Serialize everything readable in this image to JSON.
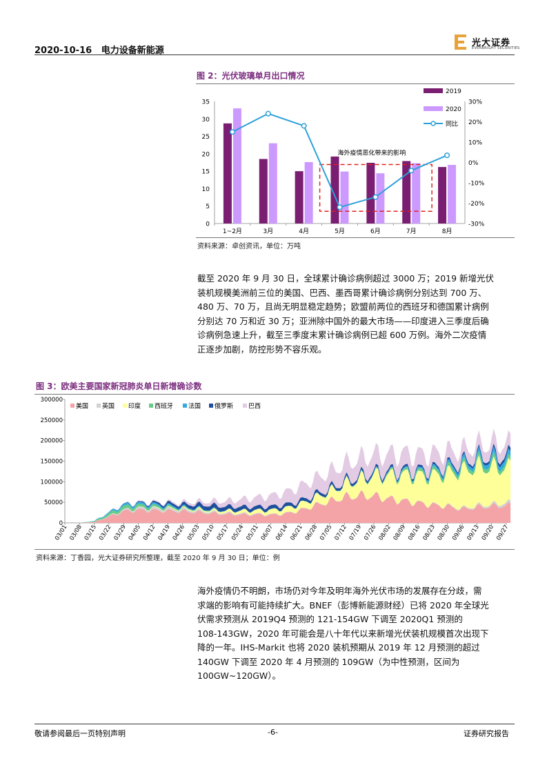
{
  "header": {
    "date": "2020-10-16",
    "sector": "电力设备新能源",
    "brand": "光大证券",
    "brand_en": "EVERBRIGHT SECURITIES"
  },
  "figure2": {
    "title": "图 2：光伏玻璃单月出口情况",
    "source": "资料来源：卓创资讯，单位：万吨",
    "annotation": "海外疫情恶化带来的影响",
    "chart_data": {
      "type": "bar",
      "categories": [
        "1~2月",
        "3月",
        "4月",
        "5月",
        "6月",
        "7月",
        "8月"
      ],
      "series": [
        {
          "name": "2019",
          "values": [
            28.7,
            18.5,
            15.0,
            19.2,
            17.4,
            17.9,
            16.2
          ],
          "color": "#7a1e72"
        },
        {
          "name": "2020",
          "values": [
            33.0,
            23.0,
            17.6,
            14.9,
            14.4,
            17.3,
            16.8
          ],
          "color": "#cc99ff"
        }
      ],
      "line": {
        "name": "同比",
        "values": [
          15,
          24,
          18,
          -22,
          -17,
          -4,
          3.5
        ],
        "color": "#2aa0d8"
      },
      "y_left": {
        "ticks": [
          0,
          5,
          10,
          15,
          20,
          25,
          30,
          35
        ],
        "range": [
          0,
          35
        ]
      },
      "y_right": {
        "ticks": [
          "-30%",
          "-20%",
          "-10%",
          "0%",
          "10%",
          "20%",
          "30%"
        ],
        "range": [
          -30,
          30
        ]
      },
      "legend_position": "right"
    }
  },
  "paragraph1": [
    "截至 2020 年 9 月 30 日，全球累计确诊病例超过 3000 万；2019 新增光伏",
    "装机规模美洲前三位的美国、巴西、墨西哥累计确诊病例分别达到 700 万、",
    "480 万、70 万，且尚无明显稳定趋势；欧盟前两位的西班牙和德国累计病例",
    "分别达 70 万和近 30 万；亚洲除中国外的最大市场——印度进入三季度后确",
    "诊病例急速上升，截至三季度末累计确诊病例已超 600 万例。海外二次疫情",
    "正逐步加剧，防控形势不容乐观。"
  ],
  "figure3": {
    "title": "图 3：欧美主要国家新冠肺炎单日新增确诊数",
    "source": "资料来源：丁香园，光大证券研究所整理，截至 2020 年 9 月 30 日；单位：例",
    "chart_data": {
      "type": "area",
      "stacked": true,
      "legend_position": "top-left",
      "series_names": [
        "美国",
        "英国",
        "印度",
        "西班牙",
        "法国",
        "俄罗斯",
        "巴西"
      ],
      "series_colors": [
        "#f4a3a6",
        "#d1d1d1",
        "#ffff99",
        "#66cc88",
        "#33aadd",
        "#1f4e9c",
        "#e3cbe3"
      ],
      "x_ticks": [
        "03/01",
        "03/08",
        "03/15",
        "03/22",
        "03/29",
        "04/05",
        "04/12",
        "04/19",
        "04/26",
        "05/03",
        "05/10",
        "05/17",
        "05/24",
        "05/31",
        "06/07",
        "06/14",
        "06/21",
        "06/28",
        "07/05",
        "07/12",
        "07/19",
        "07/26",
        "08/02",
        "08/09",
        "08/16",
        "08/23",
        "08/30",
        "09/06",
        "09/13",
        "09/20",
        "09/27"
      ],
      "y_ticks": [
        "0",
        "50000",
        "100000",
        "150000",
        "200000",
        "250000",
        "300000"
      ],
      "y_range": [
        0,
        300000
      ],
      "weekly_totals": {
        "美国": [
          0,
          100,
          2000,
          15000,
          28000,
          31000,
          30000,
          29000,
          28000,
          26000,
          23000,
          21000,
          20000,
          20000,
          19000,
          22000,
          30000,
          42000,
          52000,
          62000,
          66000,
          65000,
          58000,
          53000,
          48000,
          43000,
          40000,
          33000,
          38000,
          40000,
          42000
        ],
        "英国": [
          0,
          0,
          300,
          1500,
          3500,
          4500,
          5000,
          4800,
          4500,
          4000,
          3500,
          3000,
          2500,
          2000,
          1500,
          1200,
          1000,
          900,
          800,
          700,
          700,
          700,
          800,
          900,
          1000,
          1200,
          1500,
          2500,
          3500,
          4500,
          6500
        ],
        "印度": [
          0,
          0,
          0,
          50,
          100,
          500,
          1000,
          1500,
          1800,
          2500,
          3500,
          5000,
          6500,
          8000,
          10000,
          12000,
          14000,
          18000,
          23000,
          30000,
          38000,
          48000,
          55000,
          62000,
          65000,
          70000,
          78000,
          90000,
          95000,
          90000,
          85000
        ],
        "西班牙": [
          0,
          50,
          1500,
          6000,
          7500,
          6500,
          5000,
          3500,
          2000,
          1500,
          1000,
          600,
          400,
          300,
          300,
          300,
          300,
          400,
          500,
          800,
          1500,
          2500,
          3500,
          5000,
          6000,
          7000,
          8000,
          8500,
          9000,
          10000,
          9000
        ],
        "法国": [
          0,
          50,
          900,
          3000,
          5000,
          4500,
          4000,
          3000,
          2000,
          1500,
          1000,
          700,
          500,
          500,
          500,
          500,
          500,
          500,
          600,
          700,
          800,
          1000,
          1500,
          2500,
          3000,
          4500,
          6000,
          7500,
          9000,
          11000,
          12000
        ],
        "俄罗斯": [
          0,
          0,
          10,
          100,
          600,
          1500,
          3500,
          5500,
          6500,
          9000,
          10500,
          9500,
          9000,
          8500,
          8500,
          8000,
          7500,
          7000,
          6500,
          6300,
          6000,
          5800,
          5400,
          5100,
          4900,
          4800,
          4900,
          5100,
          5500,
          6500,
          8000
        ],
        "巴西": [
          0,
          0,
          50,
          200,
          1000,
          1500,
          2000,
          3000,
          5000,
          7000,
          10000,
          13000,
          18000,
          22000,
          26000,
          30000,
          35000,
          38000,
          40000,
          42000,
          42000,
          43000,
          42000,
          40000,
          38000,
          37000,
          35000,
          30000,
          28000,
          30000,
          30000
        ]
      }
    }
  },
  "paragraph2": [
    "海外疫情仍不明朗，市场仍对今年及明年海外光伏市场的发展存在分歧，需",
    "求端的影响有可能持续扩大。BNEF（彭博新能源财经）已将 2020 年全球光",
    "伏需求预测从 2019Q4 预测的 121-154GW 下调至 2020Q1 预测的",
    "108-143GW，2020 年可能会是八十年代以来新增光伏装机规模首次出现下",
    "降的一年。IHS-Markit 也将 2020 装机预期从 2019 年 12 月预测的超过",
    "140GW 下调至 2020 年 4 月预测的 109GW（为中性预测，区间为",
    "100GW~120GW）。"
  ],
  "footer": {
    "left": "敬请参阅最后一页特别声明",
    "page": "-6-",
    "right": "证券研究报告"
  }
}
